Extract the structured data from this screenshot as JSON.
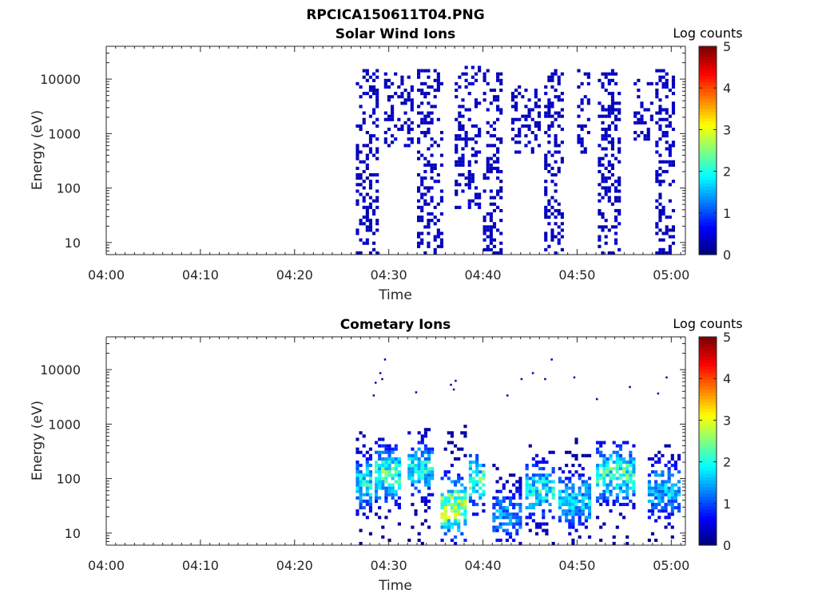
{
  "figure": {
    "title": "RPCICA150611T04.PNG"
  },
  "chart_data": [
    {
      "type": "heatmap",
      "title": "Solar Wind Ions",
      "xlabel": "Time",
      "ylabel": "Energy (eV)",
      "x_ticks": [
        "04:00",
        "04:10",
        "04:20",
        "04:30",
        "04:40",
        "04:50",
        "05:00"
      ],
      "xlim_minutes": [
        0,
        61.5
      ],
      "y_scale": "log",
      "y_ticks": [
        "10",
        "100",
        "1000",
        "10000"
      ],
      "ylim": [
        6,
        40000
      ],
      "colorbar": {
        "label": "Log counts",
        "ticks": [
          "0",
          "1",
          "2",
          "3",
          "4",
          "5"
        ],
        "range": [
          0,
          5
        ],
        "colormap": "jet"
      },
      "bursts": [
        {
          "t_start_min": 26.5,
          "t_end_min": 28.8,
          "e_min": 6,
          "e_max": 15000,
          "peak_log_counts": 0.3
        },
        {
          "t_start_min": 29.5,
          "t_end_min": 32.5,
          "e_min": 600,
          "e_max": 13000,
          "peak_log_counts": 0.3
        },
        {
          "t_start_min": 33.0,
          "t_end_min": 35.8,
          "e_min": 6,
          "e_max": 15000,
          "peak_log_counts": 0.3
        },
        {
          "t_start_min": 37.0,
          "t_end_min": 39.8,
          "e_min": 40,
          "e_max": 17000,
          "peak_log_counts": 0.3
        },
        {
          "t_start_min": 40.0,
          "t_end_min": 41.8,
          "e_min": 6,
          "e_max": 16000,
          "peak_log_counts": 0.3
        },
        {
          "t_start_min": 43.0,
          "t_end_min": 46.0,
          "e_min": 400,
          "e_max": 8000,
          "peak_log_counts": 0.3
        },
        {
          "t_start_min": 46.5,
          "t_end_min": 48.6,
          "e_min": 6,
          "e_max": 15000,
          "peak_log_counts": 0.3
        },
        {
          "t_start_min": 50.0,
          "t_end_min": 51.2,
          "e_min": 400,
          "e_max": 15000,
          "peak_log_counts": 0.3
        },
        {
          "t_start_min": 52.2,
          "t_end_min": 54.4,
          "e_min": 6,
          "e_max": 17000,
          "peak_log_counts": 0.3
        },
        {
          "t_start_min": 56.0,
          "t_end_min": 57.8,
          "e_min": 700,
          "e_max": 12000,
          "peak_log_counts": 0.3
        },
        {
          "t_start_min": 58.3,
          "t_end_min": 60.3,
          "e_min": 6,
          "e_max": 15000,
          "peak_log_counts": 0.3
        }
      ]
    },
    {
      "type": "heatmap",
      "title": "Cometary Ions",
      "xlabel": "Time",
      "ylabel": "Energy (eV)",
      "x_ticks": [
        "04:00",
        "04:10",
        "04:20",
        "04:30",
        "04:40",
        "04:50",
        "05:00"
      ],
      "xlim_minutes": [
        0,
        61.5
      ],
      "y_scale": "log",
      "y_ticks": [
        "10",
        "100",
        "1000",
        "10000"
      ],
      "ylim": [
        6,
        40000
      ],
      "colorbar": {
        "label": "Log counts",
        "ticks": [
          "0",
          "1",
          "2",
          "3",
          "4",
          "5"
        ],
        "range": [
          0,
          5
        ],
        "colormap": "jet"
      },
      "bursts": [
        {
          "t_start_min": 26.5,
          "t_end_min": 28.0,
          "e_min": 6,
          "e_max": 800,
          "peak_log_counts": 2.0,
          "core_energy": 80
        },
        {
          "t_start_min": 28.5,
          "t_end_min": 31.0,
          "e_min": 6,
          "e_max": 600,
          "peak_log_counts": 2.3,
          "core_energy": 120
        },
        {
          "t_start_min": 32.0,
          "t_end_min": 34.5,
          "e_min": 6,
          "e_max": 1000,
          "peak_log_counts": 2.0,
          "core_energy": 150
        },
        {
          "t_start_min": 35.5,
          "t_end_min": 38.0,
          "e_min": 6,
          "e_max": 1000,
          "peak_log_counts": 3.0,
          "core_energy": 30
        },
        {
          "t_start_min": 38.5,
          "t_end_min": 40.0,
          "e_min": 20,
          "e_max": 300,
          "peak_log_counts": 2.3,
          "core_energy": 90
        },
        {
          "t_start_min": 41.0,
          "t_end_min": 44.0,
          "e_min": 6,
          "e_max": 200,
          "peak_log_counts": 1.5,
          "core_energy": 20
        },
        {
          "t_start_min": 44.5,
          "t_end_min": 47.5,
          "e_min": 6,
          "e_max": 400,
          "peak_log_counts": 2.0,
          "core_energy": 60
        },
        {
          "t_start_min": 48.0,
          "t_end_min": 51.5,
          "e_min": 6,
          "e_max": 600,
          "peak_log_counts": 1.8,
          "core_energy": 40
        },
        {
          "t_start_min": 52.0,
          "t_end_min": 56.0,
          "e_min": 6,
          "e_max": 600,
          "peak_log_counts": 2.3,
          "core_energy": 120
        },
        {
          "t_start_min": 57.5,
          "t_end_min": 61.0,
          "e_min": 6,
          "e_max": 400,
          "peak_log_counts": 1.7,
          "core_energy": 60
        }
      ],
      "high_energy_dots": [
        {
          "t_min": 29.5,
          "e": 16000
        },
        {
          "t_min": 29.0,
          "e": 9000
        },
        {
          "t_min": 28.5,
          "e": 6000
        },
        {
          "t_min": 29.2,
          "e": 7000
        },
        {
          "t_min": 28.3,
          "e": 3500
        },
        {
          "t_min": 32.8,
          "e": 4000
        },
        {
          "t_min": 36.5,
          "e": 5500
        },
        {
          "t_min": 37.0,
          "e": 6500
        },
        {
          "t_min": 36.8,
          "e": 4500
        },
        {
          "t_min": 42.5,
          "e": 3500
        },
        {
          "t_min": 44.0,
          "e": 7000
        },
        {
          "t_min": 45.2,
          "e": 9000
        },
        {
          "t_min": 46.5,
          "e": 7000
        },
        {
          "t_min": 47.2,
          "e": 16000
        },
        {
          "t_min": 49.6,
          "e": 7500
        },
        {
          "t_min": 52.0,
          "e": 3000
        },
        {
          "t_min": 55.5,
          "e": 5000
        },
        {
          "t_min": 58.5,
          "e": 3800
        },
        {
          "t_min": 59.4,
          "e": 7500
        }
      ]
    }
  ]
}
